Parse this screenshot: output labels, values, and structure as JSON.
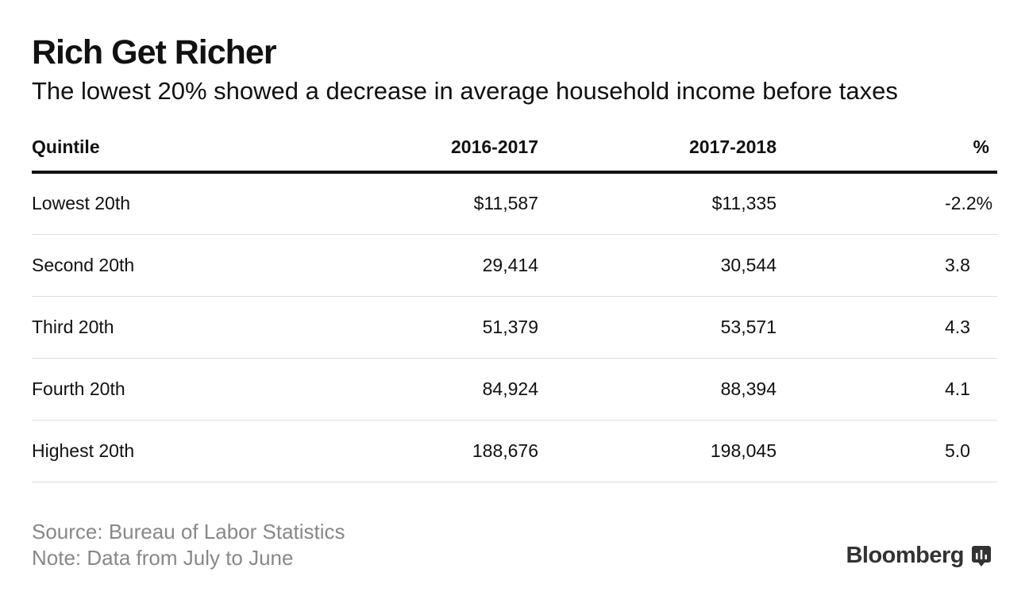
{
  "chart_data": {
    "type": "table",
    "title": "Rich Get Richer",
    "subtitle": "The lowest 20% showed a decrease in average household income before taxes",
    "columns": [
      "Quintile",
      "2016-2017",
      "2017-2018",
      "%"
    ],
    "rows": [
      [
        "Lowest 20th",
        "$11,587",
        "$11,335",
        "-2.2%"
      ],
      [
        "Second 20th",
        "29,414",
        "30,544",
        "3.8"
      ],
      [
        "Third 20th",
        "51,379",
        "53,571",
        "4.3"
      ],
      [
        "Fourth 20th",
        "84,924",
        "88,394",
        "4.1"
      ],
      [
        "Highest 20th",
        "188,676",
        "198,045",
        "5.0"
      ]
    ],
    "source": "Source: Bureau of Labor Statistics",
    "note": "Note: Data from July to June"
  },
  "brand": {
    "name": "Bloomberg",
    "icon": "bloomberg-chart-icon"
  }
}
